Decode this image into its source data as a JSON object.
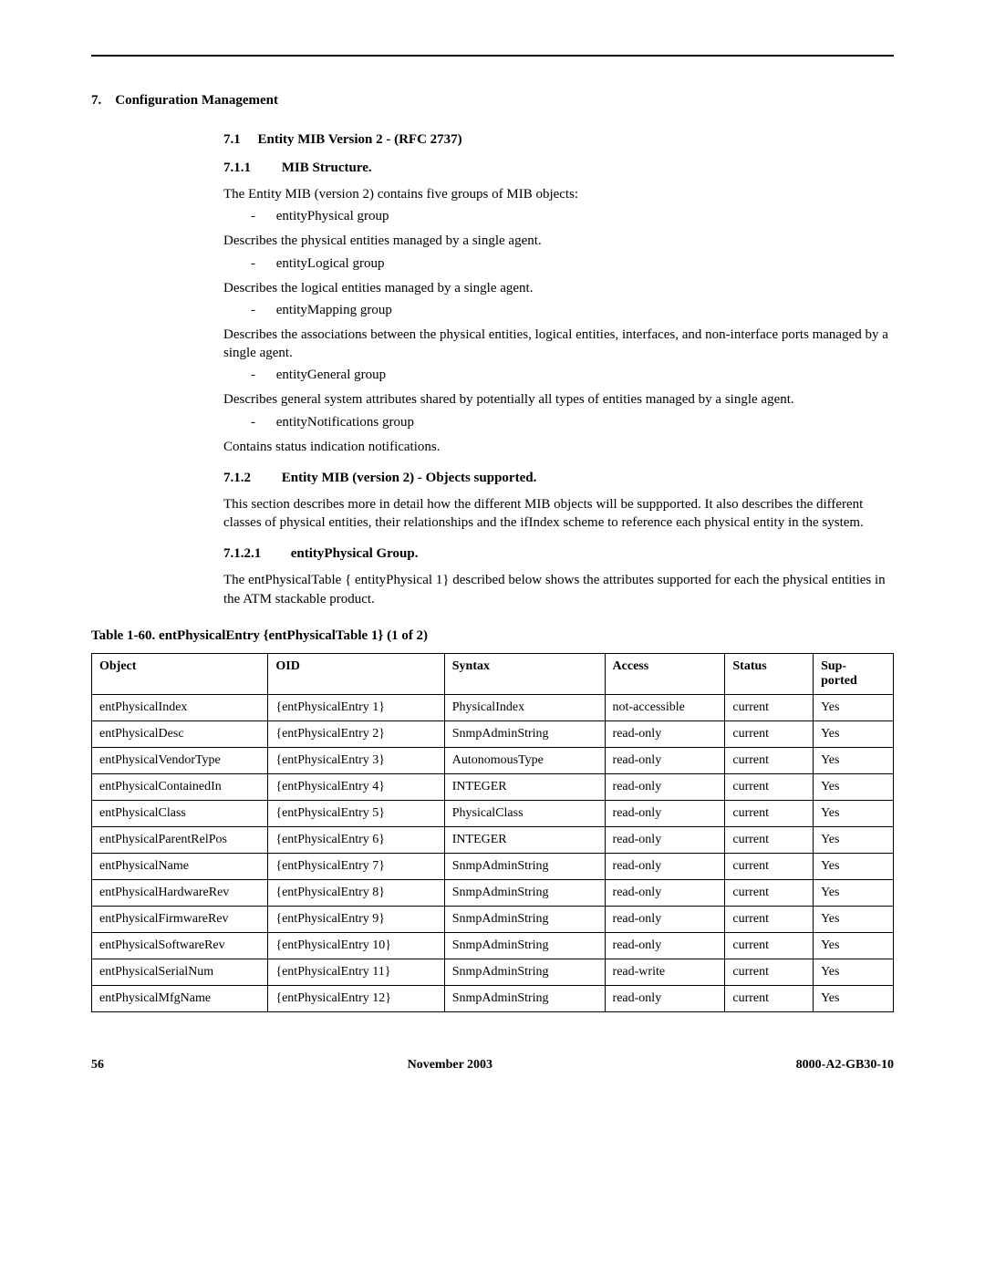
{
  "section7": {
    "num": "7.",
    "title": "Configuration Management"
  },
  "section71": {
    "num": "7.1",
    "title": "Entity MIB Version 2 - (RFC 2737)"
  },
  "section711": {
    "num": "7.1.1",
    "title": "MIB Structure."
  },
  "p1": "The Entity MIB (version 2) contains five groups of MIB objects:",
  "bullets": {
    "b1": "entityPhysical group",
    "b2": "entityLogical group",
    "b3": "entityMapping group",
    "b4": "entityGeneral group",
    "b5": "entityNotifications group"
  },
  "p2": "Describes the physical entities managed by a single agent.",
  "p3": "Describes the logical entities managed by a single agent.",
  "p4": "Describes the associations between the physical entities, logical entities, interfaces, and non-interface ports managed by a single agent.",
  "p5": "Describes general system attributes shared by potentially all types of entities managed by a single agent.",
  "p6": "Contains status indication notifications.",
  "section712": {
    "num": "7.1.2",
    "title": "Entity MIB (version 2) - Objects supported."
  },
  "p7": "This section describes more in detail how the different MIB objects will be suppported. It also describes the different classes of physical entities, their relationships and the ifIndex scheme to reference each physical entity in the system.",
  "section7121": {
    "num": "7.1.2.1",
    "title": "entityPhysical Group."
  },
  "p8": "The entPhysicalTable { entityPhysical 1} described below shows the attributes supported for each the physical entities in the ATM stackable product.",
  "table_caption": "Table 1-60.   entPhysicalEntry {entPhysicalTable 1} (1 of 2)",
  "headers": {
    "object": "Object",
    "oid": "OID",
    "syntax": "Syntax",
    "access": "Access",
    "status": "Status",
    "supported": "Sup-\nported"
  },
  "rows": [
    {
      "object": "entPhysicalIndex",
      "oid": "{entPhysicalEntry 1}",
      "syntax": "PhysicalIndex",
      "access": "not-accessible",
      "status": "current",
      "supported": "Yes"
    },
    {
      "object": "entPhysicalDesc",
      "oid": "{entPhysicalEntry 2}",
      "syntax": "SnmpAdminString",
      "access": "read-only",
      "status": "current",
      "supported": "Yes"
    },
    {
      "object": "entPhysicalVendorType",
      "oid": "{entPhysicalEntry 3}",
      "syntax": "AutonomousType",
      "access": "read-only",
      "status": "current",
      "supported": "Yes"
    },
    {
      "object": "entPhysicalContainedIn",
      "oid": "{entPhysicalEntry 4}",
      "syntax": "INTEGER",
      "access": "read-only",
      "status": "current",
      "supported": "Yes"
    },
    {
      "object": "entPhysicalClass",
      "oid": "{entPhysicalEntry 5}",
      "syntax": "PhysicalClass",
      "access": "read-only",
      "status": "current",
      "supported": "Yes"
    },
    {
      "object": "entPhysicalParentRelPos",
      "oid": "{entPhysicalEntry 6}",
      "syntax": "INTEGER",
      "access": "read-only",
      "status": "current",
      "supported": "Yes"
    },
    {
      "object": "entPhysicalName",
      "oid": "{entPhysicalEntry 7}",
      "syntax": "SnmpAdminString",
      "access": "read-only",
      "status": "current",
      "supported": "Yes"
    },
    {
      "object": "entPhysicalHardwareRev",
      "oid": "{entPhysicalEntry 8}",
      "syntax": "SnmpAdminString",
      "access": "read-only",
      "status": "current",
      "supported": "Yes"
    },
    {
      "object": "entPhysicalFirmwareRev",
      "oid": "{entPhysicalEntry 9}",
      "syntax": "SnmpAdminString",
      "access": "read-only",
      "status": "current",
      "supported": "Yes"
    },
    {
      "object": "entPhysicalSoftwareRev",
      "oid": "{entPhysicalEntry 10}",
      "syntax": "SnmpAdminString",
      "access": "read-only",
      "status": "current",
      "supported": "Yes"
    },
    {
      "object": "entPhysicalSerialNum",
      "oid": "{entPhysicalEntry 11}",
      "syntax": "SnmpAdminString",
      "access": "read-write",
      "status": "current",
      "supported": "Yes"
    },
    {
      "object": "entPhysicalMfgName",
      "oid": "{entPhysicalEntry 12}",
      "syntax": "SnmpAdminString",
      "access": "read-only",
      "status": "current",
      "supported": "Yes"
    }
  ],
  "footer": {
    "page": "56",
    "date": "November 2003",
    "docnum": "8000-A2-GB30-10"
  }
}
